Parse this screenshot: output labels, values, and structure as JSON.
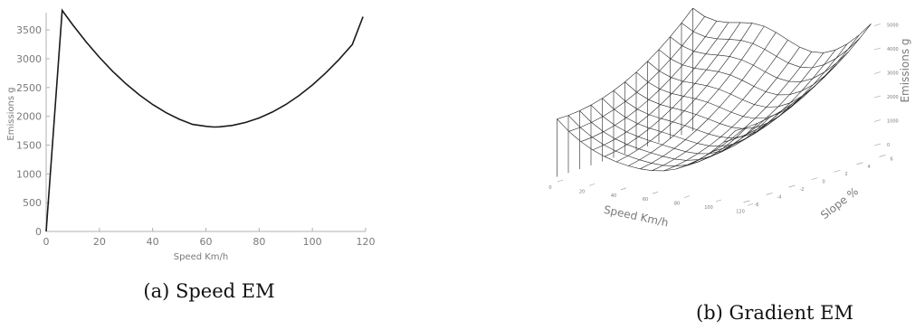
{
  "captions": {
    "a": "(a) Speed EM",
    "b": "(b) Gradient EM"
  },
  "chart_data": [
    {
      "type": "line",
      "xlabel": "Speed Km/h",
      "ylabel": "Emissions g",
      "xlim": [
        0,
        120
      ],
      "ylim": [
        0,
        3800
      ],
      "xticks": [
        0,
        20,
        40,
        60,
        80,
        100,
        120
      ],
      "yticks": [
        0,
        500,
        1000,
        1500,
        2000,
        2500,
        3000,
        3500
      ],
      "grid": false,
      "series": [
        {
          "x": [
            0,
            6,
            10,
            15,
            20,
            25,
            30,
            35,
            40,
            45,
            50,
            55,
            60,
            63,
            65,
            70,
            75,
            80,
            85,
            90,
            95,
            100,
            105,
            110,
            115,
            119
          ],
          "y": [
            0,
            3840,
            3588,
            3293,
            3024,
            2781,
            2563,
            2371,
            2205,
            2064,
            1948,
            1859,
            1826,
            1814,
            1817,
            1842,
            1893,
            1971,
            2075,
            2205,
            2361,
            2544,
            2752,
            2987,
            3247,
            3730
          ]
        }
      ]
    },
    {
      "type": "surface",
      "xlabel": "Speed Km/h",
      "ylabel": "Slope %",
      "zlabel": "Emissions g",
      "xticks": [
        0,
        20,
        40,
        60,
        80,
        100,
        120
      ],
      "yticks": [
        -6,
        -4,
        -2,
        0,
        2,
        4,
        6
      ],
      "zticks": [
        0,
        1000,
        2000,
        3000,
        4000,
        5000
      ],
      "grid": false
    }
  ]
}
